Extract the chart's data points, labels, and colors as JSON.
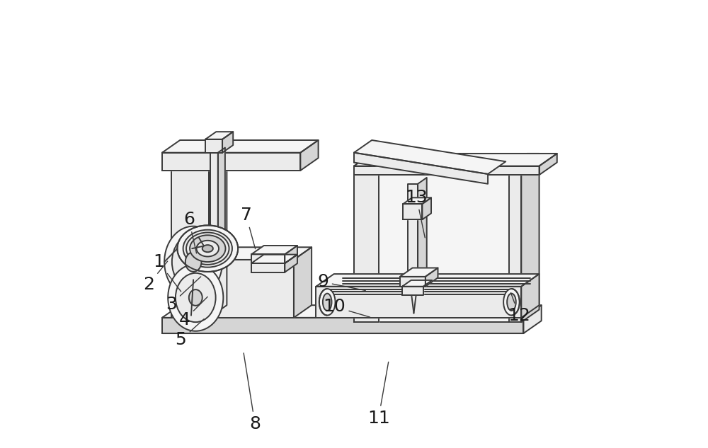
{
  "bg_color": "#ffffff",
  "line_color": "#3a3a3a",
  "line_width": 1.4,
  "fill_light": "#ebebeb",
  "fill_mid": "#d5d5d5",
  "fill_white": "#f5f5f5",
  "fill_dark": "#c0c0c0",
  "label_fontsize": 18,
  "labels": {
    "1": [
      0.062,
      0.415,
      0.115,
      0.345
    ],
    "2": [
      0.04,
      0.365,
      0.085,
      0.42
    ],
    "3": [
      0.09,
      0.32,
      0.16,
      0.385
    ],
    "4": [
      0.12,
      0.285,
      0.175,
      0.34
    ],
    "5": [
      0.112,
      0.24,
      0.167,
      0.29
    ],
    "6": [
      0.13,
      0.51,
      0.148,
      0.43
    ],
    "7": [
      0.258,
      0.52,
      0.28,
      0.44
    ],
    "8": [
      0.278,
      0.052,
      0.252,
      0.215
    ],
    "9": [
      0.43,
      0.37,
      0.53,
      0.35
    ],
    "10": [
      0.455,
      0.315,
      0.54,
      0.29
    ],
    "11": [
      0.555,
      0.065,
      0.578,
      0.195
    ],
    "12": [
      0.87,
      0.295,
      0.85,
      0.35
    ],
    "13": [
      0.64,
      0.56,
      0.66,
      0.465
    ]
  }
}
